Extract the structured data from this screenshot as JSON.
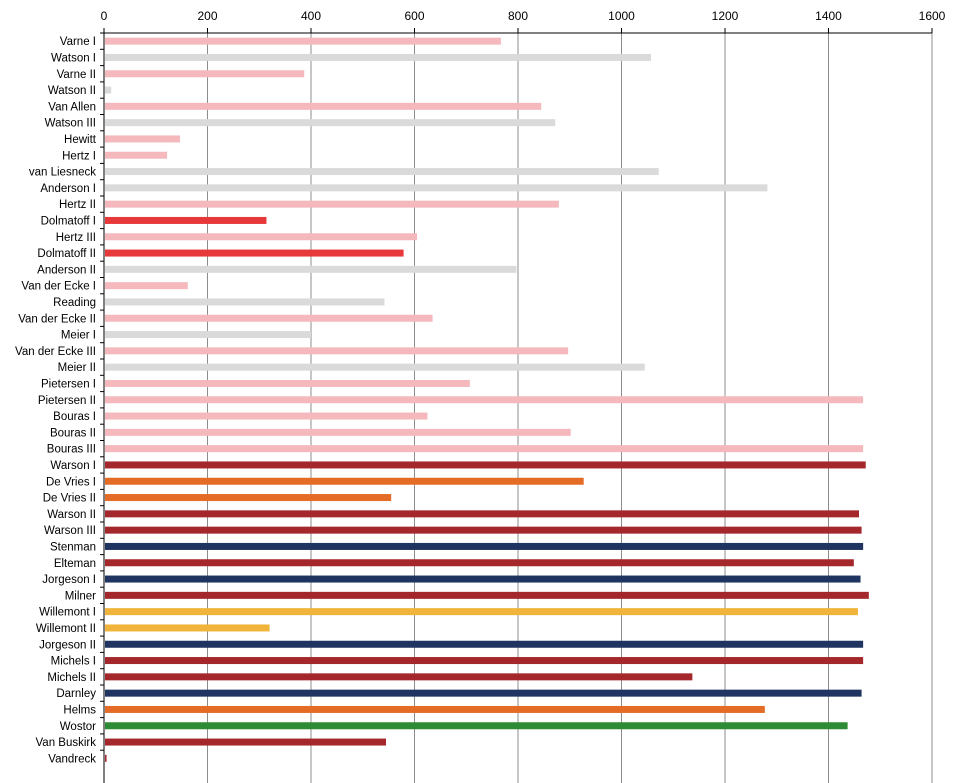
{
  "colors": {
    "pink": "#f4b8bd",
    "gray": "#dadada",
    "red": "#e8393a",
    "darkred": "#a4272b",
    "orange": "#e46c26",
    "navy": "#1f3461",
    "gold": "#f0b43a",
    "green": "#2e8b35",
    "grid": "#8c8c8c",
    "axis": "#000000"
  },
  "chart_data": {
    "type": "bar",
    "orientation": "horizontal",
    "title": "",
    "xlabel": "",
    "ylabel": "",
    "xlim": [
      0,
      1600
    ],
    "xticks": [
      0,
      200,
      400,
      600,
      800,
      1000,
      1200,
      1400,
      1600
    ],
    "x_axis_position": "top",
    "grid": "vertical",
    "legend": "none",
    "categories": [
      "Varne I",
      "Watson I",
      "Varne II",
      "Watson II",
      "Van Allen",
      "Watson III",
      "Hewitt",
      "Hertz I",
      "van Liesneck",
      "Anderson I",
      "Hertz II",
      "Dolmatoff I",
      "Hertz III",
      "Dolmatoff II",
      "Anderson II",
      "Van der Ecke I",
      "Reading",
      "Van der Ecke II",
      "Meier I",
      "Van der Ecke III",
      "Meier II",
      "Pietersen I",
      "Pietersen II",
      "Bouras I",
      "Bouras II",
      "Bouras III",
      "Warson I",
      "De Vries I",
      "De Vries II",
      "Warson II",
      "Warson III",
      "Stenman",
      "Elteman",
      "Jorgeson I",
      "Milner",
      "Willemont I",
      "Willemont II",
      "Jorgeson II",
      "Michels I",
      "Michels II",
      "Darnley",
      "Helms",
      "Wostor",
      "Van Buskirk",
      "Vandreck"
    ],
    "values": [
      765,
      1055,
      385,
      12,
      843,
      870,
      145,
      120,
      1070,
      1280,
      877,
      312,
      603,
      577,
      795,
      160,
      540,
      633,
      398,
      895,
      1043,
      705,
      1465,
      623,
      900,
      1465,
      1470,
      925,
      553,
      1457,
      1462,
      1465,
      1447,
      1460,
      1476,
      1455,
      318,
      1465,
      1465,
      1135,
      1462,
      1275,
      1435,
      543,
      3
    ],
    "bar_colors": [
      "pink",
      "gray",
      "pink",
      "gray",
      "pink",
      "gray",
      "pink",
      "pink",
      "gray",
      "gray",
      "pink",
      "red",
      "pink",
      "red",
      "gray",
      "pink",
      "gray",
      "pink",
      "gray",
      "pink",
      "gray",
      "pink",
      "pink",
      "pink",
      "pink",
      "pink",
      "darkred",
      "orange",
      "orange",
      "darkred",
      "darkred",
      "navy",
      "darkred",
      "navy",
      "darkred",
      "gold",
      "gold",
      "navy",
      "darkred",
      "darkred",
      "navy",
      "orange",
      "green",
      "darkred",
      "darkred"
    ]
  }
}
